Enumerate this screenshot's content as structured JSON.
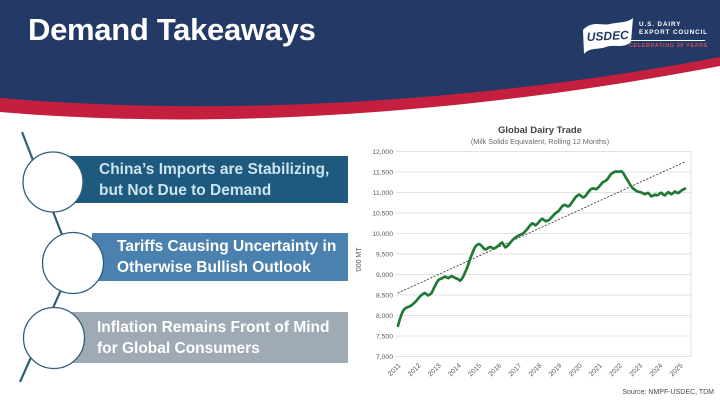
{
  "header": {
    "title": "Demand Takeaways",
    "logo": {
      "acronym": "USDEC",
      "org_line1": "U.S. DAIRY",
      "org_line2": "EXPORT COUNCIL",
      "tagline": "CELEBRATING 30 YEARS"
    },
    "colors": {
      "navy": "#233a66",
      "red": "#c41f3e"
    }
  },
  "takeaways": [
    {
      "text": "China’s Imports are Stabilizing,\nbut Not Due to Demand",
      "bg": "#1e5a7d",
      "fg": "#cce3f0"
    },
    {
      "text": "Tariffs Causing Uncertainty in\nOtherwise Bullish Outlook",
      "bg": "#4b81ae",
      "fg": "#ffffff"
    },
    {
      "text": "Inflation Remains Front of Mind\nfor Global Consumers",
      "bg": "#9faab5",
      "fg": "#ffffff"
    }
  ],
  "chart_data": {
    "type": "line",
    "title": "Global Dairy Trade",
    "subtitle": "(Milk Solids Equivalent, Rolling 12 Months)",
    "ylabel": "'000 MT",
    "source": "Source: NMPF-USDEC, TDM",
    "ylim": [
      7000,
      12000
    ],
    "ytick_step": 500,
    "xlim": [
      2011,
      2025.4
    ],
    "xticks": [
      2011,
      2012,
      2013,
      2014,
      2015,
      2016,
      2017,
      2018,
      2019,
      2020,
      2021,
      2022,
      2023,
      2024,
      2025
    ],
    "grid": true,
    "legend": "none",
    "series": [
      {
        "name": "Global dairy trade volume",
        "color": "#1f7a34",
        "style": "solid",
        "points": [
          [
            2011.0,
            7750
          ],
          [
            2011.08,
            7890
          ],
          [
            2011.17,
            8020
          ],
          [
            2011.25,
            8110
          ],
          [
            2011.33,
            8160
          ],
          [
            2011.42,
            8190
          ],
          [
            2011.5,
            8210
          ],
          [
            2011.58,
            8220
          ],
          [
            2011.67,
            8250
          ],
          [
            2011.75,
            8280
          ],
          [
            2011.83,
            8320
          ],
          [
            2011.92,
            8360
          ],
          [
            2012.0,
            8410
          ],
          [
            2012.08,
            8460
          ],
          [
            2012.17,
            8500
          ],
          [
            2012.25,
            8530
          ],
          [
            2012.33,
            8550
          ],
          [
            2012.42,
            8520
          ],
          [
            2012.5,
            8490
          ],
          [
            2012.58,
            8510
          ],
          [
            2012.67,
            8550
          ],
          [
            2012.75,
            8630
          ],
          [
            2012.83,
            8720
          ],
          [
            2012.92,
            8800
          ],
          [
            2013.0,
            8860
          ],
          [
            2013.08,
            8890
          ],
          [
            2013.17,
            8900
          ],
          [
            2013.25,
            8930
          ],
          [
            2013.33,
            8950
          ],
          [
            2013.42,
            8930
          ],
          [
            2013.5,
            8910
          ],
          [
            2013.58,
            8940
          ],
          [
            2013.67,
            8960
          ],
          [
            2013.75,
            8940
          ],
          [
            2013.83,
            8920
          ],
          [
            2013.92,
            8900
          ],
          [
            2014.0,
            8880
          ],
          [
            2014.08,
            8850
          ],
          [
            2014.17,
            8890
          ],
          [
            2014.25,
            8960
          ],
          [
            2014.33,
            9050
          ],
          [
            2014.42,
            9150
          ],
          [
            2014.5,
            9260
          ],
          [
            2014.58,
            9380
          ],
          [
            2014.67,
            9490
          ],
          [
            2014.75,
            9590
          ],
          [
            2014.83,
            9670
          ],
          [
            2014.92,
            9720
          ],
          [
            2015.0,
            9745
          ],
          [
            2015.08,
            9730
          ],
          [
            2015.17,
            9690
          ],
          [
            2015.25,
            9640
          ],
          [
            2015.33,
            9610
          ],
          [
            2015.42,
            9630
          ],
          [
            2015.5,
            9660
          ],
          [
            2015.58,
            9670
          ],
          [
            2015.67,
            9650
          ],
          [
            2015.75,
            9630
          ],
          [
            2015.83,
            9650
          ],
          [
            2015.92,
            9680
          ],
          [
            2016.0,
            9710
          ],
          [
            2016.08,
            9750
          ],
          [
            2016.17,
            9780
          ],
          [
            2016.25,
            9720
          ],
          [
            2016.33,
            9660
          ],
          [
            2016.42,
            9690
          ],
          [
            2016.5,
            9730
          ],
          [
            2016.58,
            9780
          ],
          [
            2016.67,
            9830
          ],
          [
            2016.75,
            9870
          ],
          [
            2016.83,
            9900
          ],
          [
            2016.92,
            9930
          ],
          [
            2017.0,
            9950
          ],
          [
            2017.08,
            9970
          ],
          [
            2017.17,
            9990
          ],
          [
            2017.25,
            10020
          ],
          [
            2017.33,
            10060
          ],
          [
            2017.42,
            10110
          ],
          [
            2017.5,
            10160
          ],
          [
            2017.58,
            10210
          ],
          [
            2017.67,
            10250
          ],
          [
            2017.75,
            10230
          ],
          [
            2017.83,
            10200
          ],
          [
            2017.92,
            10240
          ],
          [
            2018.0,
            10280
          ],
          [
            2018.08,
            10330
          ],
          [
            2018.17,
            10360
          ],
          [
            2018.25,
            10330
          ],
          [
            2018.33,
            10300
          ],
          [
            2018.42,
            10310
          ],
          [
            2018.5,
            10330
          ],
          [
            2018.58,
            10370
          ],
          [
            2018.67,
            10420
          ],
          [
            2018.75,
            10460
          ],
          [
            2018.83,
            10500
          ],
          [
            2018.92,
            10530
          ],
          [
            2019.0,
            10560
          ],
          [
            2019.08,
            10620
          ],
          [
            2019.17,
            10670
          ],
          [
            2019.25,
            10700
          ],
          [
            2019.33,
            10690
          ],
          [
            2019.42,
            10660
          ],
          [
            2019.5,
            10670
          ],
          [
            2019.58,
            10720
          ],
          [
            2019.67,
            10780
          ],
          [
            2019.75,
            10840
          ],
          [
            2019.83,
            10890
          ],
          [
            2019.92,
            10930
          ],
          [
            2020.0,
            10950
          ],
          [
            2020.08,
            10920
          ],
          [
            2020.17,
            10880
          ],
          [
            2020.25,
            10890
          ],
          [
            2020.33,
            10930
          ],
          [
            2020.42,
            10990
          ],
          [
            2020.5,
            11040
          ],
          [
            2020.58,
            11080
          ],
          [
            2020.67,
            11100
          ],
          [
            2020.75,
            11090
          ],
          [
            2020.83,
            11080
          ],
          [
            2020.92,
            11110
          ],
          [
            2021.0,
            11150
          ],
          [
            2021.08,
            11200
          ],
          [
            2021.17,
            11250
          ],
          [
            2021.25,
            11270
          ],
          [
            2021.33,
            11290
          ],
          [
            2021.42,
            11340
          ],
          [
            2021.5,
            11400
          ],
          [
            2021.58,
            11450
          ],
          [
            2021.67,
            11480
          ],
          [
            2021.75,
            11500
          ],
          [
            2021.83,
            11515
          ],
          [
            2021.92,
            11505
          ],
          [
            2022.0,
            11510
          ],
          [
            2022.08,
            11520
          ],
          [
            2022.17,
            11480
          ],
          [
            2022.25,
            11420
          ],
          [
            2022.33,
            11350
          ],
          [
            2022.42,
            11280
          ],
          [
            2022.5,
            11210
          ],
          [
            2022.58,
            11150
          ],
          [
            2022.67,
            11100
          ],
          [
            2022.75,
            11070
          ],
          [
            2022.83,
            11040
          ],
          [
            2022.92,
            11020
          ],
          [
            2023.0,
            11010
          ],
          [
            2023.08,
            11000
          ],
          [
            2023.17,
            10980
          ],
          [
            2023.25,
            10955
          ],
          [
            2023.33,
            10975
          ],
          [
            2023.42,
            10990
          ],
          [
            2023.5,
            10950
          ],
          [
            2023.58,
            10905
          ],
          [
            2023.67,
            10925
          ],
          [
            2023.75,
            10950
          ],
          [
            2023.83,
            10930
          ],
          [
            2023.92,
            10945
          ],
          [
            2024.0,
            10975
          ],
          [
            2024.08,
            10995
          ],
          [
            2024.17,
            10950
          ],
          [
            2024.25,
            10930
          ],
          [
            2024.33,
            10970
          ],
          [
            2024.42,
            11010
          ],
          [
            2024.5,
            10980
          ],
          [
            2024.58,
            10955
          ],
          [
            2024.67,
            10990
          ],
          [
            2024.75,
            11025
          ],
          [
            2024.83,
            11000
          ],
          [
            2024.92,
            10985
          ],
          [
            2025.0,
            11020
          ],
          [
            2025.08,
            11050
          ],
          [
            2025.17,
            11075
          ],
          [
            2025.25,
            11095
          ]
        ]
      },
      {
        "name": "Linear trend",
        "color": "#3c3c3c",
        "style": "dotted",
        "points": [
          [
            2011.0,
            8550
          ],
          [
            2025.3,
            11760
          ]
        ]
      }
    ]
  }
}
